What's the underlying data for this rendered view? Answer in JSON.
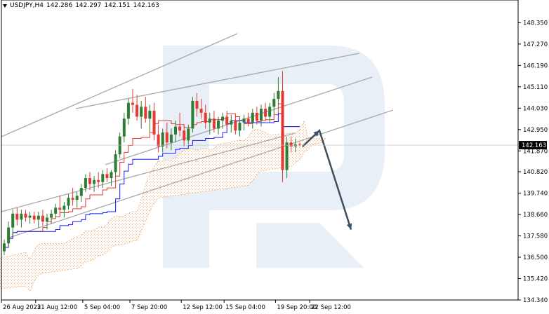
{
  "header": {
    "symbol": "USDJPY,H4",
    "open": "142.286",
    "high": "142.297",
    "low": "142.151",
    "close": "142.163"
  },
  "colors": {
    "bull_candle": "#2e7d32",
    "bear_candle": "#e53935",
    "tenkan_line": "#e53935",
    "kijun_line": "#1a1aff",
    "cloud_border": "#f0a050",
    "trend_lines": "#a9a9a9",
    "forecast_arrow": "#3d4f5e",
    "watermark": "#d6e1ee",
    "price_tag_bg": "#000000"
  },
  "chart_data": {
    "type": "candlestick",
    "title": "USDJPY,H4",
    "ylim": [
      134.34,
      149.0
    ],
    "price_ticks": [
      "148.350",
      "147.270",
      "146.190",
      "145.110",
      "144.030",
      "142.950",
      "141.870",
      "140.820",
      "139.740",
      "138.660",
      "137.580",
      "136.500",
      "135.420",
      "134.340"
    ],
    "time_labels": [
      "26 Aug 2022",
      "31 Aug 12:00",
      "5 Sep 04:00",
      "7 Sep 20:00",
      "12 Sep 12:00",
      "15 Sep 04:00",
      "19 Sep 20:00",
      "22 Sep 12:00"
    ],
    "current_price": "142.163",
    "candles": [
      [
        136.8,
        137.4,
        136.6,
        137.2
      ],
      [
        137.2,
        138.3,
        137.0,
        138.0
      ],
      [
        138.0,
        138.9,
        137.6,
        138.7
      ],
      [
        138.7,
        139.0,
        138.1,
        138.4
      ],
      [
        138.4,
        138.9,
        138.0,
        138.7
      ],
      [
        138.7,
        138.9,
        138.3,
        138.5
      ],
      [
        138.5,
        138.8,
        138.2,
        138.6
      ],
      [
        138.6,
        138.8,
        138.2,
        138.4
      ],
      [
        138.4,
        138.8,
        138.0,
        138.6
      ],
      [
        138.6,
        138.9,
        138.1,
        138.3
      ],
      [
        138.3,
        138.7,
        137.9,
        138.5
      ],
      [
        138.5,
        138.9,
        138.2,
        138.7
      ],
      [
        138.7,
        139.2,
        138.5,
        139.0
      ],
      [
        139.0,
        139.6,
        138.6,
        138.9
      ],
      [
        138.9,
        139.3,
        138.5,
        139.1
      ],
      [
        139.1,
        139.7,
        138.9,
        139.5
      ],
      [
        139.5,
        140.0,
        139.1,
        139.4
      ],
      [
        139.4,
        139.8,
        139.0,
        139.6
      ],
      [
        139.6,
        140.2,
        139.3,
        140.0
      ],
      [
        140.0,
        140.7,
        139.8,
        140.5
      ],
      [
        140.5,
        140.8,
        139.9,
        140.2
      ],
      [
        140.2,
        140.6,
        139.8,
        140.4
      ],
      [
        140.4,
        140.8,
        140.0,
        140.3
      ],
      [
        140.3,
        140.9,
        140.0,
        140.7
      ],
      [
        140.7,
        141.0,
        140.3,
        140.5
      ],
      [
        140.5,
        140.9,
        140.1,
        140.8
      ],
      [
        140.8,
        141.9,
        140.6,
        141.7
      ],
      [
        141.7,
        142.8,
        141.5,
        142.6
      ],
      [
        142.6,
        143.8,
        142.3,
        143.5
      ],
      [
        143.5,
        144.5,
        143.2,
        144.3
      ],
      [
        144.3,
        145.0,
        143.8,
        144.2
      ],
      [
        144.2,
        144.7,
        143.4,
        143.6
      ],
      [
        143.6,
        144.4,
        143.0,
        144.1
      ],
      [
        144.1,
        144.6,
        143.3,
        143.5
      ],
      [
        143.5,
        144.2,
        142.8,
        143.9
      ],
      [
        143.9,
        144.3,
        142.4,
        142.7
      ],
      [
        142.7,
        143.2,
        141.8,
        142.1
      ],
      [
        142.1,
        143.0,
        141.8,
        142.8
      ],
      [
        142.8,
        143.3,
        142.0,
        142.3
      ],
      [
        142.3,
        143.0,
        141.9,
        142.7
      ],
      [
        142.7,
        143.4,
        142.3,
        143.1
      ],
      [
        143.1,
        143.8,
        142.6,
        142.9
      ],
      [
        142.9,
        143.1,
        142.1,
        142.4
      ],
      [
        142.4,
        143.2,
        142.2,
        143.0
      ],
      [
        143.0,
        144.6,
        142.8,
        144.4
      ],
      [
        144.4,
        144.8,
        143.6,
        144.0
      ],
      [
        144.0,
        144.5,
        143.5,
        143.8
      ],
      [
        143.8,
        144.2,
        143.0,
        143.3
      ],
      [
        143.3,
        143.8,
        142.7,
        143.5
      ],
      [
        143.5,
        143.9,
        142.8,
        143.0
      ],
      [
        143.0,
        143.6,
        142.7,
        143.4
      ],
      [
        143.4,
        143.8,
        143.0,
        143.6
      ],
      [
        143.6,
        143.9,
        143.0,
        143.2
      ],
      [
        143.2,
        143.7,
        142.8,
        143.4
      ],
      [
        143.4,
        143.7,
        142.7,
        142.9
      ],
      [
        142.9,
        143.5,
        142.6,
        143.3
      ],
      [
        143.3,
        143.7,
        142.9,
        143.5
      ],
      [
        143.5,
        143.8,
        143.1,
        143.3
      ],
      [
        143.3,
        144.0,
        143.0,
        143.8
      ],
      [
        143.8,
        144.1,
        143.2,
        143.4
      ],
      [
        143.4,
        144.2,
        143.1,
        144.0
      ],
      [
        144.0,
        144.3,
        143.4,
        143.6
      ],
      [
        143.6,
        144.3,
        143.3,
        144.1
      ],
      [
        144.1,
        144.8,
        143.7,
        144.5
      ],
      [
        144.5,
        145.6,
        144.2,
        144.9
      ],
      [
        144.9,
        145.9,
        140.3,
        140.9
      ],
      [
        140.9,
        142.6,
        140.5,
        142.3
      ],
      [
        142.3,
        142.6,
        141.8,
        142.1
      ],
      [
        142.1,
        142.5,
        141.8,
        142.2
      ],
      [
        142.2,
        142.3,
        142.1,
        142.16
      ]
    ],
    "forecast": {
      "rise_to": 142.9,
      "fall_to": 137.9
    }
  },
  "icons": {
    "dropdown": "triangle-down-icon"
  }
}
